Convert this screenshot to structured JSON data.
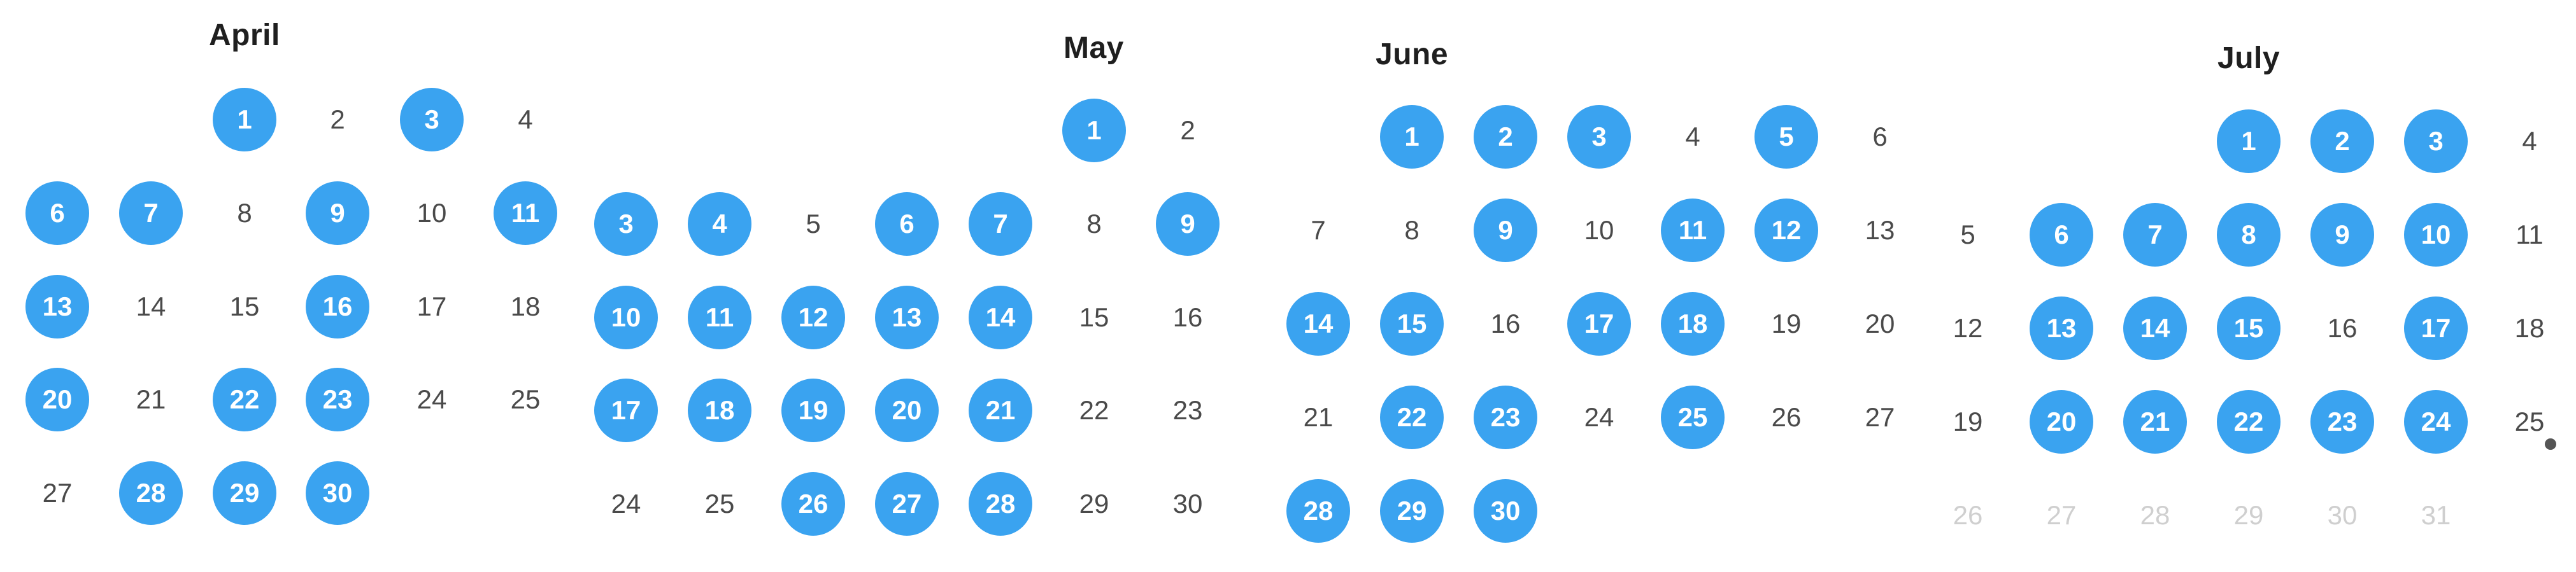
{
  "months": [
    {
      "name": "April",
      "weeks": [
        [
          null,
          null,
          1,
          2,
          3,
          4
        ],
        [
          6,
          7,
          8,
          9,
          10,
          11
        ],
        [
          13,
          14,
          15,
          16,
          17,
          18
        ],
        [
          20,
          21,
          22,
          23,
          24,
          25
        ],
        [
          27,
          28,
          29,
          30
        ]
      ],
      "selected": [
        1,
        3,
        6,
        7,
        9,
        11,
        13,
        16,
        20,
        22,
        23,
        28,
        29,
        30
      ],
      "muted": []
    },
    {
      "name": "May",
      "weeks": [
        [
          null,
          null,
          null,
          null,
          null,
          1,
          2
        ],
        [
          3,
          4,
          5,
          6,
          7,
          8,
          9
        ],
        [
          10,
          11,
          12,
          13,
          14,
          15,
          16
        ],
        [
          17,
          18,
          19,
          20,
          21,
          22,
          23
        ],
        [
          24,
          25,
          26,
          27,
          28,
          29,
          30
        ]
      ],
      "selected": [
        1,
        3,
        4,
        6,
        7,
        9,
        10,
        11,
        12,
        13,
        14,
        17,
        18,
        19,
        20,
        21,
        26,
        27,
        28
      ],
      "muted": []
    },
    {
      "name": "June",
      "weeks": [
        [
          null,
          1,
          2,
          3,
          4,
          5,
          6
        ],
        [
          7,
          8,
          9,
          10,
          11,
          12,
          13
        ],
        [
          14,
          15,
          16,
          17,
          18,
          19,
          20
        ],
        [
          21,
          22,
          23,
          24,
          25,
          26,
          27
        ],
        [
          28,
          29,
          30
        ]
      ],
      "selected": [
        1,
        2,
        3,
        5,
        9,
        11,
        12,
        14,
        15,
        17,
        18,
        22,
        23,
        25,
        28,
        29,
        30
      ],
      "muted": []
    },
    {
      "name": "July",
      "weeks": [
        [
          null,
          null,
          null,
          1,
          2,
          3,
          4
        ],
        [
          5,
          6,
          7,
          8,
          9,
          10,
          11
        ],
        [
          12,
          13,
          14,
          15,
          16,
          17,
          18
        ],
        [
          19,
          20,
          21,
          22,
          23,
          24,
          25
        ],
        [
          26,
          27,
          28,
          29,
          30,
          31
        ]
      ],
      "selected": [
        1,
        2,
        3,
        6,
        7,
        8,
        9,
        10,
        13,
        14,
        15,
        17,
        20,
        21,
        22,
        23,
        24
      ],
      "muted": [
        26,
        27,
        28,
        29,
        30,
        31
      ]
    }
  ],
  "colors": {
    "selected_fill": "#3aa3f0",
    "selected_text": "#ffffff",
    "day_text": "#4a4a4a",
    "muted_text": "#cfcfcf",
    "title_text": "#1f1f1f"
  }
}
